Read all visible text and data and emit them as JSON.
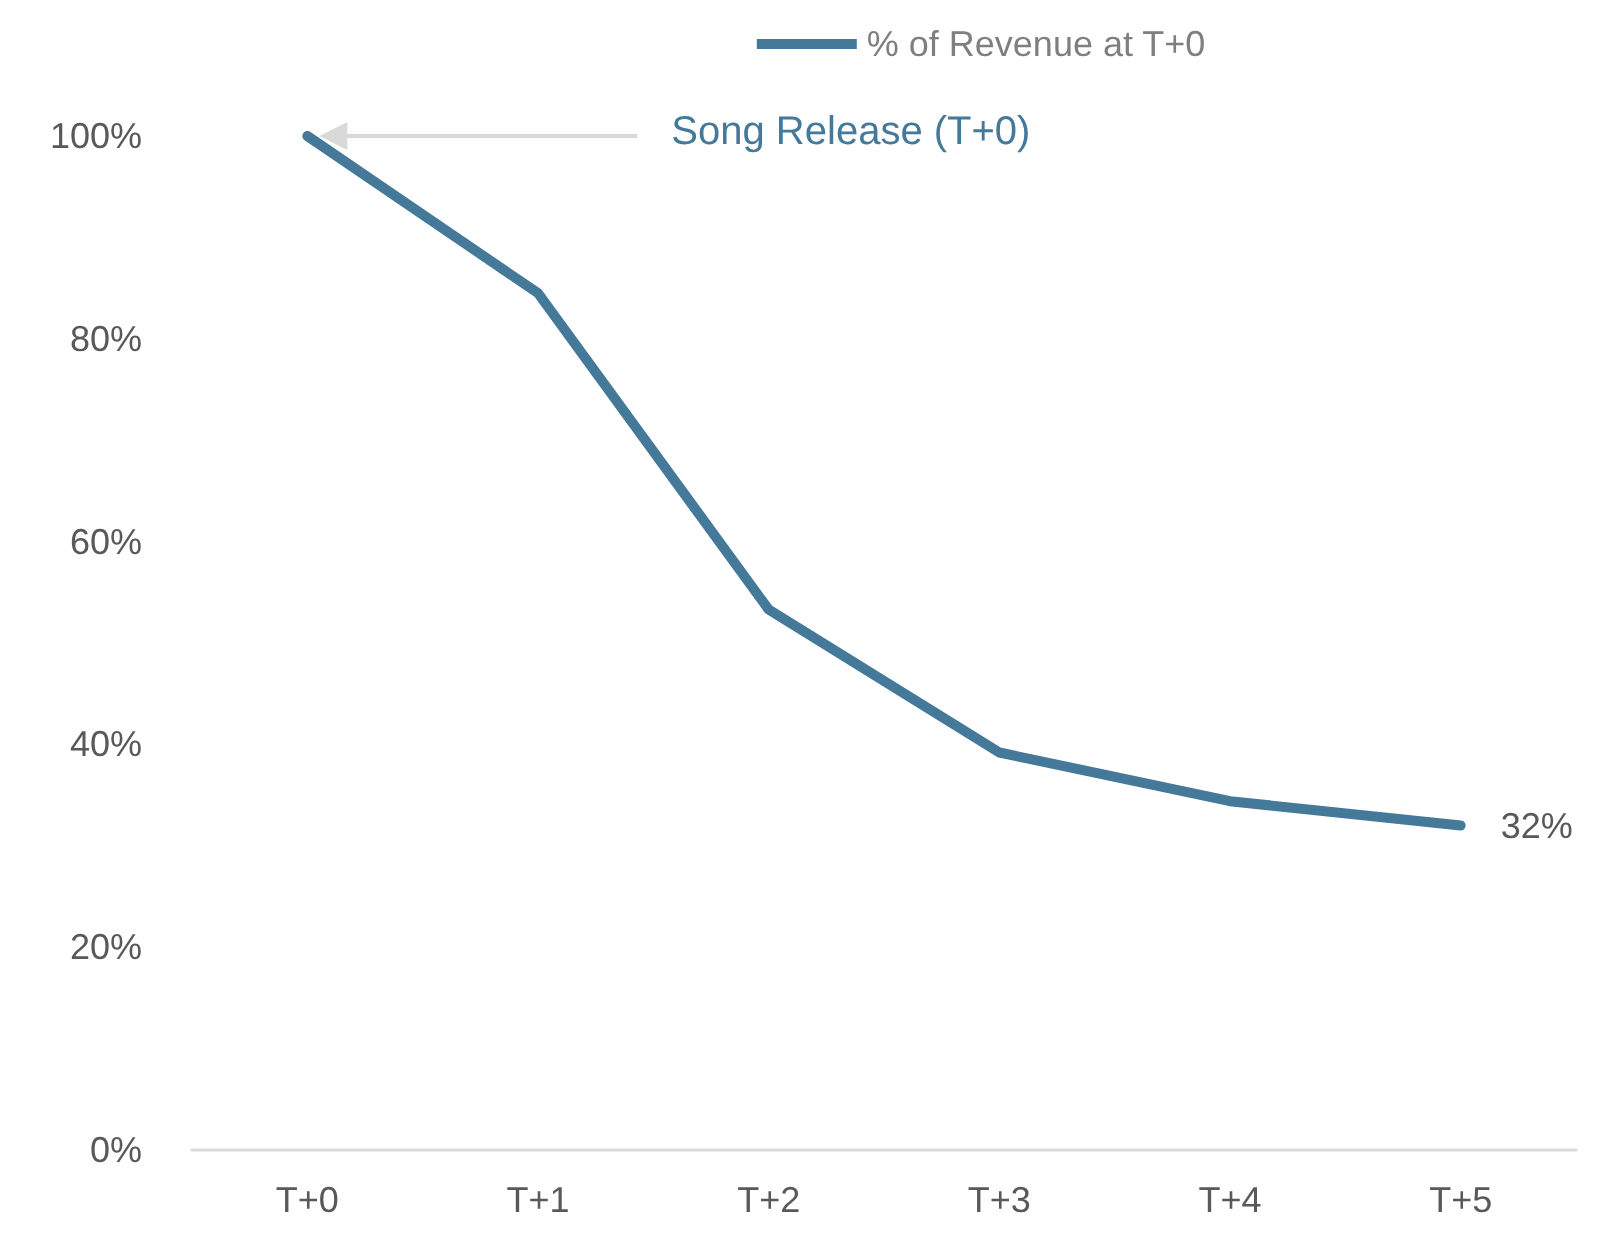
{
  "chart_data": {
    "type": "line",
    "categories": [
      "T+0",
      "T+1",
      "T+2",
      "T+3",
      "T+4",
      "T+5"
    ],
    "series": [
      {
        "name": "% of Revenue at T+0",
        "color": "#44799a",
        "values": [
          100,
          84.5,
          53.3,
          39.2,
          34.4,
          32
        ],
        "value_labels": [
          null,
          null,
          null,
          null,
          null,
          "32%"
        ]
      }
    ],
    "ylim": [
      0,
      100
    ],
    "yticks": [
      {
        "value": 0,
        "label": "0%"
      },
      {
        "value": 20,
        "label": "20%"
      },
      {
        "value": 40,
        "label": "40%"
      },
      {
        "value": 60,
        "label": "60%"
      },
      {
        "value": 80,
        "label": "80%"
      },
      {
        "value": 100,
        "label": "100%"
      }
    ],
    "grid": false,
    "legend": "top right",
    "marker": "none",
    "line_style": "solid",
    "annotations": [
      "Song Release (T+0)"
    ]
  }
}
